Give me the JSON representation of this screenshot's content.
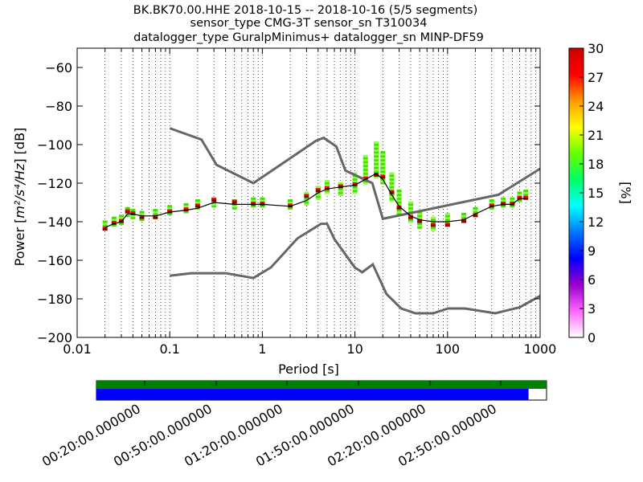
{
  "chart_data": {
    "type": "heatmap",
    "title_lines": [
      "BK.BK70.00.HHE   2018-10-15 -- 2018-10-16  (5/5 segments)",
      "sensor_type CMG-3T sensor_sn T310034",
      "datalogger_type GuralpMinimus+ datalogger_sn MINP-DF59"
    ],
    "xlabel": "Period [s]",
    "ylabel_prefix": "Power [",
    "ylabel_math": "m²/s⁴/Hz",
    "ylabel_suffix": "] [dB]",
    "x_scale": "log",
    "xlim": [
      0.01,
      1000
    ],
    "ylim": [
      -200,
      -50
    ],
    "x_ticks": [
      0.01,
      0.1,
      1,
      10,
      100,
      1000
    ],
    "x_tick_labels": [
      "0.01",
      "0.1",
      "1",
      "10",
      "100",
      "1000"
    ],
    "y_ticks": [
      -200,
      -180,
      -160,
      -140,
      -120,
      -100,
      -80,
      -60
    ],
    "y_tick_labels": [
      "−200",
      "−180",
      "−160",
      "−140",
      "−120",
      "−100",
      "−80",
      "−60"
    ],
    "grid": "dotted-vertical",
    "colorbar": {
      "label": "[%]",
      "range": [
        0,
        30
      ],
      "ticks": [
        0,
        3,
        6,
        9,
        12,
        15,
        18,
        21,
        24,
        27,
        30
      ],
      "tick_labels": [
        "0",
        "3",
        "6",
        "9",
        "12",
        "15",
        "18",
        "21",
        "24",
        "27",
        "30"
      ],
      "colormap": [
        "#ffffff",
        "#ff66ff",
        "#9900cc",
        "#0000ff",
        "#0077ff",
        "#00ffff",
        "#00ff66",
        "#66ff00",
        "#ffff00",
        "#ff9900",
        "#ff0000",
        "#cc0000"
      ]
    },
    "nhnm": {
      "name": "NHNM",
      "x": [
        0.1,
        0.22,
        0.32,
        0.8,
        3.8,
        4.6,
        6.3,
        7.9,
        15.4,
        20,
        354.8,
        1000
      ],
      "y": [
        -91.5,
        -97.4,
        -110.5,
        -120.0,
        -98.0,
        -96.5,
        -101.0,
        -113.5,
        -120.0,
        -138.5,
        -126.0,
        -112.5
      ]
    },
    "nlnm": {
      "name": "NLNM",
      "x": [
        0.1,
        0.17,
        0.4,
        0.8,
        1.24,
        2.4,
        4.3,
        5.0,
        6.0,
        10.0,
        12.0,
        15.6,
        21.9,
        31.6,
        45,
        70,
        101,
        154,
        328,
        600,
        1000
      ],
      "y": [
        -168.0,
        -166.7,
        -166.7,
        -169.2,
        -163.7,
        -148.6,
        -141.1,
        -141.1,
        -149.0,
        -163.8,
        -166.2,
        -162.1,
        -177.5,
        -185.0,
        -187.5,
        -187.5,
        -185.0,
        -185.0,
        -187.5,
        -184.4,
        -178.5
      ],
      "note": "approx"
    },
    "mean_curve": {
      "name": "mean",
      "x": [
        0.02,
        0.025,
        0.03,
        0.035,
        0.04,
        0.05,
        0.07,
        0.1,
        0.15,
        0.2,
        0.3,
        0.5,
        0.8,
        1,
        2,
        3,
        4,
        5,
        7,
        10,
        13,
        17,
        20,
        25,
        30,
        40,
        50,
        70,
        100,
        150,
        200,
        300,
        400,
        500,
        600,
        700
      ],
      "y": [
        -143,
        -141,
        -140,
        -136,
        -136,
        -137,
        -137,
        -135,
        -134,
        -133,
        -130,
        -131,
        -131,
        -131,
        -132,
        -129,
        -125,
        -123,
        -122,
        -121,
        -118,
        -115,
        -118,
        -126,
        -132,
        -137,
        -139,
        -140,
        -140,
        -139,
        -136,
        -132,
        -131,
        -131,
        -128,
        -128
      ]
    },
    "mode_curve": {
      "name": "mode",
      "x": [
        0.02,
        0.025,
        0.03,
        0.035,
        0.04,
        0.05,
        0.07,
        0.1,
        0.15,
        0.2,
        0.3,
        0.5,
        0.8,
        1,
        2,
        3,
        4,
        5,
        7,
        10,
        13,
        17,
        20,
        25,
        30,
        40,
        50,
        70,
        100,
        150,
        200,
        300,
        400,
        500,
        600,
        700
      ],
      "y": [
        -144,
        -141,
        -140,
        -135,
        -136,
        -138,
        -138,
        -135,
        -134,
        -132,
        -129,
        -130,
        -131,
        -131,
        -132,
        -127,
        -124,
        -123,
        -122,
        -121,
        -118,
        -116,
        -117,
        -125,
        -133,
        -138,
        -140,
        -142,
        -142,
        -140,
        -137,
        -132,
        -131,
        -131,
        -128,
        -128
      ]
    },
    "histogram_cells": {
      "note": "approx",
      "x": [
        0.02,
        0.025,
        0.03,
        0.035,
        0.04,
        0.05,
        0.07,
        0.1,
        0.15,
        0.2,
        0.3,
        0.5,
        0.8,
        1,
        2,
        3,
        4,
        5,
        7,
        10,
        13,
        17,
        20,
        25,
        30,
        40,
        50,
        70,
        100,
        150,
        200,
        300,
        400,
        500,
        600,
        700
      ],
      "y": [
        -142,
        -140,
        -139,
        -135,
        -136,
        -137,
        -136,
        -134,
        -133,
        -131,
        -130,
        -131,
        -130,
        -130,
        -131,
        -128,
        -125,
        -122,
        -123,
        -120,
        -113,
        -108,
        -112,
        -122,
        -130,
        -135,
        -139,
        -141,
        -139,
        -138,
        -135,
        -131,
        -130,
        -130,
        -127,
        -126
      ],
      "spread": [
        2,
        2,
        2,
        2,
        2,
        2,
        2,
        2,
        2,
        2,
        2,
        2,
        2,
        2,
        2,
        3,
        3,
        3,
        3,
        5,
        7,
        9,
        8,
        7,
        6,
        5,
        4,
        3,
        3,
        2,
        2,
        2,
        2,
        2,
        2,
        2
      ]
    }
  },
  "timeline": {
    "tick_labels": [
      "00:20:00.000000",
      "00:50:00.000000",
      "01:20:00.000000",
      "01:50:00.000000",
      "02:20:00.000000",
      "02:50:00.000000"
    ],
    "data_coverage_fraction": 0.96,
    "gap_coverage_fraction": 1.0,
    "colors": {
      "coverage": "#0000ff",
      "gaps": "#008000"
    }
  },
  "colors": {
    "hist_green": "#44dd00",
    "hist_lightgreen": "#88ff44",
    "hist_red": "#ff0000",
    "hist_darkred": "#880000",
    "nm_gray": "#666666",
    "mean_black": "#000000"
  }
}
